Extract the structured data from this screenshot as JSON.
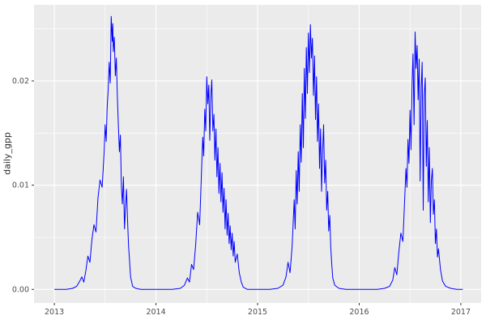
{
  "figure": {
    "ylabel": "daily_gpp",
    "panel_bg": "#EBEBEB",
    "grid_color": "#FFFFFF",
    "axis_text_color": "#4D4D4D",
    "tick_color": "#333333"
  },
  "chart_data": {
    "type": "line",
    "title": "",
    "xlabel": "",
    "ylabel": "daily_gpp",
    "legend": "none",
    "grid": "on",
    "xlim": [
      2012.8,
      2017.2
    ],
    "ylim": [
      -0.0013,
      0.0273
    ],
    "x_ticks": [
      2013,
      2014,
      2015,
      2016,
      2017
    ],
    "x_tick_labels": [
      "2013",
      "2014",
      "2015",
      "2016",
      "2017"
    ],
    "x_minor_ticks": [
      2013.5,
      2014.5,
      2015.5,
      2016.5
    ],
    "y_ticks": [
      0.0,
      0.01,
      0.02
    ],
    "y_tick_labels": [
      "0.00",
      "0.01",
      "0.02"
    ],
    "y_minor_ticks": [
      0.005,
      0.015,
      0.025
    ],
    "series": [
      {
        "name": "daily_gpp",
        "color": "#0000FF",
        "points": [
          [
            2013.0,
            0
          ],
          [
            2013.06,
            0
          ],
          [
            2013.12,
            0
          ],
          [
            2013.18,
            0.0001
          ],
          [
            2013.22,
            0.0003
          ],
          [
            2013.25,
            0.0008
          ],
          [
            2013.27,
            0.0012
          ],
          [
            2013.29,
            0.0007
          ],
          [
            2013.31,
            0.0018
          ],
          [
            2013.33,
            0.0032
          ],
          [
            2013.35,
            0.0026
          ],
          [
            2013.37,
            0.0048
          ],
          [
            2013.39,
            0.0062
          ],
          [
            2013.41,
            0.0055
          ],
          [
            2013.43,
            0.0088
          ],
          [
            2013.45,
            0.0105
          ],
          [
            2013.47,
            0.0098
          ],
          [
            2013.49,
            0.0132
          ],
          [
            2013.5,
            0.0158
          ],
          [
            2013.51,
            0.0142
          ],
          [
            2013.52,
            0.0175
          ],
          [
            2013.53,
            0.0192
          ],
          [
            2013.54,
            0.0218
          ],
          [
            2013.55,
            0.0198
          ],
          [
            2013.56,
            0.0262
          ],
          [
            2013.57,
            0.0238
          ],
          [
            2013.575,
            0.0255
          ],
          [
            2013.58,
            0.0228
          ],
          [
            2013.59,
            0.0242
          ],
          [
            2013.6,
            0.0205
          ],
          [
            2013.61,
            0.0222
          ],
          [
            2013.62,
            0.0185
          ],
          [
            2013.63,
            0.0158
          ],
          [
            2013.64,
            0.0132
          ],
          [
            2013.65,
            0.0148
          ],
          [
            2013.66,
            0.0098
          ],
          [
            2013.67,
            0.0082
          ],
          [
            2013.68,
            0.0108
          ],
          [
            2013.69,
            0.0058
          ],
          [
            2013.7,
            0.0078
          ],
          [
            2013.71,
            0.0096
          ],
          [
            2013.72,
            0.0068
          ],
          [
            2013.73,
            0.0042
          ],
          [
            2013.74,
            0.0028
          ],
          [
            2013.75,
            0.0012
          ],
          [
            2013.77,
            0.0003
          ],
          [
            2013.8,
            0.0001
          ],
          [
            2013.85,
            0
          ],
          [
            2013.92,
            0
          ],
          [
            2014.0,
            0
          ],
          [
            2014.08,
            0
          ],
          [
            2014.16,
            0
          ],
          [
            2014.24,
            0.0001
          ],
          [
            2014.28,
            0.0004
          ],
          [
            2014.31,
            0.0011
          ],
          [
            2014.33,
            0.0007
          ],
          [
            2014.35,
            0.0024
          ],
          [
            2014.37,
            0.0019
          ],
          [
            2014.39,
            0.0042
          ],
          [
            2014.41,
            0.0074
          ],
          [
            2014.43,
            0.0062
          ],
          [
            2014.45,
            0.0118
          ],
          [
            2014.46,
            0.0146
          ],
          [
            2014.47,
            0.0128
          ],
          [
            2014.48,
            0.0173
          ],
          [
            2014.49,
            0.0152
          ],
          [
            2014.5,
            0.0204
          ],
          [
            2014.51,
            0.0178
          ],
          [
            2014.52,
            0.0196
          ],
          [
            2014.53,
            0.0143
          ],
          [
            2014.54,
            0.0186
          ],
          [
            2014.55,
            0.0201
          ],
          [
            2014.56,
            0.0152
          ],
          [
            2014.57,
            0.0168
          ],
          [
            2014.58,
            0.0124
          ],
          [
            2014.59,
            0.0154
          ],
          [
            2014.6,
            0.0108
          ],
          [
            2014.61,
            0.0136
          ],
          [
            2014.62,
            0.0092
          ],
          [
            2014.63,
            0.0121
          ],
          [
            2014.64,
            0.0084
          ],
          [
            2014.65,
            0.0112
          ],
          [
            2014.66,
            0.0074
          ],
          [
            2014.67,
            0.0097
          ],
          [
            2014.68,
            0.0058
          ],
          [
            2014.69,
            0.0086
          ],
          [
            2014.7,
            0.0052
          ],
          [
            2014.71,
            0.0073
          ],
          [
            2014.72,
            0.0044
          ],
          [
            2014.73,
            0.0061
          ],
          [
            2014.74,
            0.0038
          ],
          [
            2014.75,
            0.0054
          ],
          [
            2014.76,
            0.0032
          ],
          [
            2014.77,
            0.0046
          ],
          [
            2014.78,
            0.0026
          ],
          [
            2014.8,
            0.0034
          ],
          [
            2014.82,
            0.0016
          ],
          [
            2014.84,
            0.0007
          ],
          [
            2014.86,
            0.0002
          ],
          [
            2014.9,
            0
          ],
          [
            2014.97,
            0
          ],
          [
            2015.05,
            0
          ],
          [
            2015.12,
            0
          ],
          [
            2015.2,
            0.0001
          ],
          [
            2015.25,
            0.0004
          ],
          [
            2015.28,
            0.0012
          ],
          [
            2015.3,
            0.0026
          ],
          [
            2015.32,
            0.0016
          ],
          [
            2015.34,
            0.0042
          ],
          [
            2015.36,
            0.0086
          ],
          [
            2015.37,
            0.0058
          ],
          [
            2015.38,
            0.0114
          ],
          [
            2015.39,
            0.0082
          ],
          [
            2015.4,
            0.0132
          ],
          [
            2015.41,
            0.0094
          ],
          [
            2015.42,
            0.0158
          ],
          [
            2015.43,
            0.0122
          ],
          [
            2015.44,
            0.0188
          ],
          [
            2015.45,
            0.0136
          ],
          [
            2015.46,
            0.0212
          ],
          [
            2015.47,
            0.0164
          ],
          [
            2015.48,
            0.0232
          ],
          [
            2015.49,
            0.0188
          ],
          [
            2015.5,
            0.0246
          ],
          [
            2015.51,
            0.0208
          ],
          [
            2015.52,
            0.0254
          ],
          [
            2015.53,
            0.0222
          ],
          [
            2015.54,
            0.0241
          ],
          [
            2015.55,
            0.0186
          ],
          [
            2015.56,
            0.0224
          ],
          [
            2015.57,
            0.0163
          ],
          [
            2015.58,
            0.0204
          ],
          [
            2015.59,
            0.0142
          ],
          [
            2015.6,
            0.0178
          ],
          [
            2015.61,
            0.0116
          ],
          [
            2015.62,
            0.0154
          ],
          [
            2015.63,
            0.0094
          ],
          [
            2015.64,
            0.0133
          ],
          [
            2015.65,
            0.0158
          ],
          [
            2015.66,
            0.0102
          ],
          [
            2015.67,
            0.0124
          ],
          [
            2015.68,
            0.0076
          ],
          [
            2015.69,
            0.0094
          ],
          [
            2015.7,
            0.0056
          ],
          [
            2015.71,
            0.0071
          ],
          [
            2015.72,
            0.0041
          ],
          [
            2015.73,
            0.0024
          ],
          [
            2015.74,
            0.0011
          ],
          [
            2015.76,
            0.0004
          ],
          [
            2015.8,
            0.0001
          ],
          [
            2015.87,
            0
          ],
          [
            2015.95,
            0
          ],
          [
            2016.02,
            0
          ],
          [
            2016.1,
            0
          ],
          [
            2016.18,
            0
          ],
          [
            2016.25,
            0.0001
          ],
          [
            2016.3,
            0.0003
          ],
          [
            2016.33,
            0.0009
          ],
          [
            2016.35,
            0.0021
          ],
          [
            2016.37,
            0.0014
          ],
          [
            2016.39,
            0.0036
          ],
          [
            2016.41,
            0.0054
          ],
          [
            2016.43,
            0.0046
          ],
          [
            2016.45,
            0.0092
          ],
          [
            2016.46,
            0.0116
          ],
          [
            2016.47,
            0.0098
          ],
          [
            2016.48,
            0.0144
          ],
          [
            2016.49,
            0.0121
          ],
          [
            2016.5,
            0.0172
          ],
          [
            2016.51,
            0.0134
          ],
          [
            2016.52,
            0.0196
          ],
          [
            2016.53,
            0.0226
          ],
          [
            2016.54,
            0.0158
          ],
          [
            2016.55,
            0.0247
          ],
          [
            2016.56,
            0.0212
          ],
          [
            2016.57,
            0.0234
          ],
          [
            2016.58,
            0.0182
          ],
          [
            2016.59,
            0.0221
          ],
          [
            2016.6,
            0.0104
          ],
          [
            2016.61,
            0.0194
          ],
          [
            2016.62,
            0.0218
          ],
          [
            2016.63,
            0.0076
          ],
          [
            2016.64,
            0.0186
          ],
          [
            2016.65,
            0.0203
          ],
          [
            2016.66,
            0.0118
          ],
          [
            2016.67,
            0.0162
          ],
          [
            2016.68,
            0.0084
          ],
          [
            2016.69,
            0.0136
          ],
          [
            2016.7,
            0.0064
          ],
          [
            2016.71,
            0.0104
          ],
          [
            2016.72,
            0.0116
          ],
          [
            2016.73,
            0.0072
          ],
          [
            2016.74,
            0.0086
          ],
          [
            2016.75,
            0.0044
          ],
          [
            2016.76,
            0.0058
          ],
          [
            2016.77,
            0.0031
          ],
          [
            2016.78,
            0.0039
          ],
          [
            2016.8,
            0.0019
          ],
          [
            2016.82,
            0.0008
          ],
          [
            2016.85,
            0.0003
          ],
          [
            2016.9,
            0.0001
          ],
          [
            2016.96,
            0
          ],
          [
            2017.02,
            0
          ]
        ]
      }
    ]
  }
}
